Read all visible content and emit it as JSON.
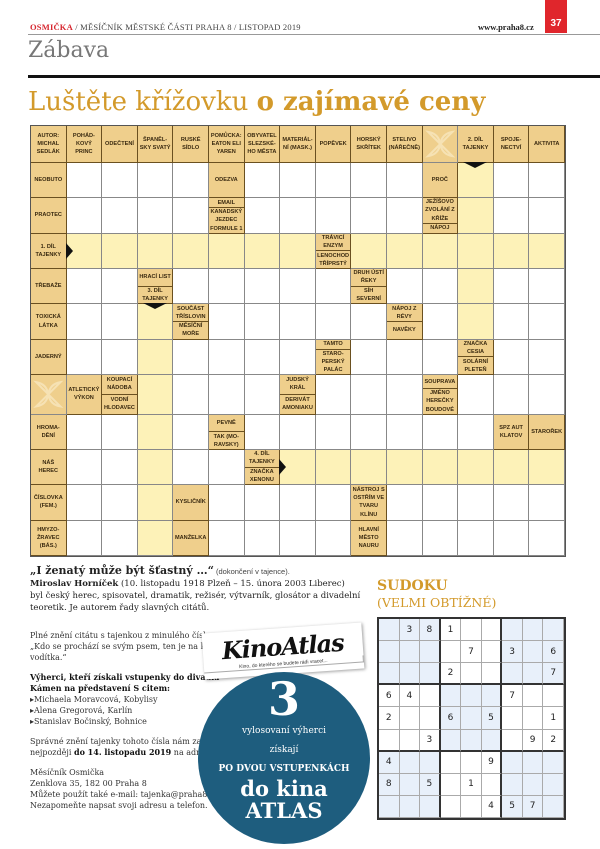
{
  "header": {
    "brand": "OSMIČKA",
    "subtitle": " / MĚSÍČNÍK MĚSTSKÉ ČÁSTI PRAHA 8 / LISTOPAD 2019",
    "website": "www.praha8.cz",
    "page_number": "37",
    "section": "Zábava",
    "accent": "#e0262c"
  },
  "title": {
    "light": "Luštěte křížovku ",
    "bold": "o zajímavé ceny",
    "color": "#d39a2b"
  },
  "crossword": {
    "legend": "'' = white cell, '#' = solution (tajenka) cell, '*' = ornament, '|' separates two clues in one cell",
    "rows": [
      [
        "AUTOR: MICHAL SEDLÁK",
        "POHÁD-KOVÝ PRINC",
        "ODEČTENÍ",
        "ŠPANĚL-SKY SVATÝ",
        "RUSKÉ SÍDLO",
        "POMŮCKA: EATON ELI YAREN",
        "OBYVATEL SLEZSKÉ-HO MĚSTA",
        "MATERIÁL-NÍ (MASK.)",
        "POPĚVEK",
        "HORSKÝ SKŘÍTEK",
        "STELIVO (NÁŘEČNĚ)",
        "*",
        "2. DÍL TAJENKY",
        "SPOJE-NECTVÍ",
        "AKTIVITA"
      ],
      [
        "NEOBUTO",
        "",
        "",
        "",
        "",
        "ODEZVA",
        "",
        "",
        "",
        "",
        "",
        "PROČ",
        "#",
        "",
        ""
      ],
      [
        "PRAOTEC",
        "",
        "",
        "",
        "",
        "EMAIL|KANADSKÝ JEZDEC FORMULE 1",
        "",
        "",
        "",
        "",
        "",
        "JEŽÍŠOVO ZVOLÁNÍ Z KŘÍŽE|NÁPOJ",
        "#",
        "",
        ""
      ],
      [
        "1. DÍL TAJENKY",
        "#",
        "#",
        "#",
        "#",
        "#",
        "#",
        "#",
        "TRÁVICÍ ENZYM|LENOCHOD TŘÍPRSTÝ",
        "#",
        "#",
        "#",
        "#",
        "#",
        "#"
      ],
      [
        "TŘEBAŽE",
        "",
        "",
        "HRACÍ LIST|3. DÍL TAJENKY",
        "",
        "",
        "",
        "",
        "",
        "DRUH ÚSTÍ ŘEKY|SÍH SEVERNÍ",
        "",
        "",
        "#",
        "",
        ""
      ],
      [
        "TOXICKÁ LÁTKA",
        "",
        "",
        "#",
        "SOUČÁST TŘÍSLOVIN|MĚSÍČNÍ MOŘE",
        "",
        "",
        "",
        "",
        "",
        "NÁPOJ Z RÉVY|NAVĚKY",
        "",
        "#",
        "",
        ""
      ],
      [
        "JADERNÝ",
        "",
        "",
        "#",
        "",
        "",
        "",
        "",
        "TAMTO|STARO-PERSKÝ PALÁC",
        "",
        "",
        "",
        "ZNAČKA CESIA|SOLÁRNÍ PLETEŇ",
        "",
        ""
      ],
      [
        "*",
        "ATLETICKÝ VÝKON",
        "KOUPACÍ NÁDOBA|VODNÍ HLODAVEC",
        "#",
        "",
        "",
        "",
        "JUDSKÝ KRÁL|DERIVÁT AMONIAKU",
        "",
        "",
        "",
        "SOUPRAVA|JMÉNO HEREČKY BOUDOVÉ",
        "",
        "",
        ""
      ],
      [
        "HROMA-DĚNÍ",
        "",
        "",
        "#",
        "",
        "PEVNĚ|TAK (MO-RAVSKY)",
        "",
        "",
        "",
        "",
        "",
        "",
        "",
        "SPZ AUT KLATOV",
        "STAROŘEK"
      ],
      [
        "NÁŠ HEREC",
        "",
        "",
        "#",
        "",
        "",
        "4. DÍL TAJENKY|ZNAČKA XENONU",
        "#",
        "#",
        "#",
        "#",
        "#",
        "#",
        "#",
        "#"
      ],
      [
        "ČÍSLOVKA (FEM.)",
        "",
        "",
        "#",
        "KYSLIČNÍK",
        "",
        "",
        "",
        "",
        "NÁSTROJ S OSTŘÍM VE TVARU KLÍNU",
        "",
        "",
        "",
        "",
        ""
      ],
      [
        "HMYZO-ŽRAVEC (BÁS.)",
        "",
        "",
        "#",
        "MANŽELKA",
        "",
        "",
        "",
        "",
        "HLAVNÍ MĚSTO NAURU",
        "",
        "",
        "",
        "",
        ""
      ]
    ]
  },
  "quote": {
    "text": "„I ženatý může být šťastný …“",
    "note": " (dokončení  v tajence).",
    "author": "Miroslav Horníček",
    "author_dates": " (10. listopadu 1918 Plzeň – 15. února 2003 Liberec)",
    "bio": "byl český herec, spisovatel, dramatik, režisér, výtvarník, glosátor a divadelní teoretik. Je autorem řady slavných citátů."
  },
  "info": {
    "previous": "Plné znění citátu s tajenkou z minulého čísla: „Kdo se prochází se svým psem, ten je na konci vodítka.“",
    "winners_title": "Výherci, kteří získali vstupenky do divadla Kámen na představení S citem:",
    "winners": [
      "Michaela Moravcová, Kobylisy",
      "Alena Gregorová, Karlín",
      "Stanislav Bočinský, Bohnice"
    ],
    "deadline_pre": "Správné znění tajenky tohoto čísla nám zašlete nejpozději ",
    "deadline": "do 14. listopadu 2019",
    "deadline_post": " na adresu:",
    "address": [
      "Měsíčník Osmička",
      "Zenklova 35, 182 00  Praha 8",
      "Můžete použít také e-mail: tajenka@praha8.cz.",
      "Nezapomeňte napsat svoji adresu a telefon."
    ]
  },
  "promo": {
    "logo": "KinoAtlas",
    "logo_tagline": "Kino, do kterého se budete rádi vracet...",
    "number": "3",
    "line1": "vylosovaní výherci",
    "line2": "získají",
    "line3": "PO DVOU VSTUPENKÁCH",
    "line4": "do kina",
    "line5": "ATLAS",
    "color": "#1e5d7e"
  },
  "sudoku": {
    "title": "SUDOKU",
    "subtitle": "(VELMI OBTÍŽNÉ)",
    "grid": [
      [
        0,
        3,
        8,
        1,
        0,
        0,
        0,
        0,
        0
      ],
      [
        0,
        0,
        0,
        0,
        7,
        0,
        3,
        0,
        6
      ],
      [
        0,
        0,
        0,
        2,
        0,
        0,
        0,
        0,
        7
      ],
      [
        6,
        4,
        0,
        0,
        0,
        0,
        7,
        0,
        0
      ],
      [
        2,
        0,
        0,
        6,
        0,
        5,
        0,
        0,
        1
      ],
      [
        0,
        0,
        3,
        0,
        0,
        0,
        0,
        9,
        2
      ],
      [
        4,
        0,
        0,
        0,
        0,
        9,
        0,
        0,
        0
      ],
      [
        8,
        0,
        5,
        0,
        1,
        0,
        0,
        0,
        0
      ],
      [
        0,
        0,
        0,
        0,
        0,
        4,
        5,
        7,
        0
      ]
    ]
  }
}
